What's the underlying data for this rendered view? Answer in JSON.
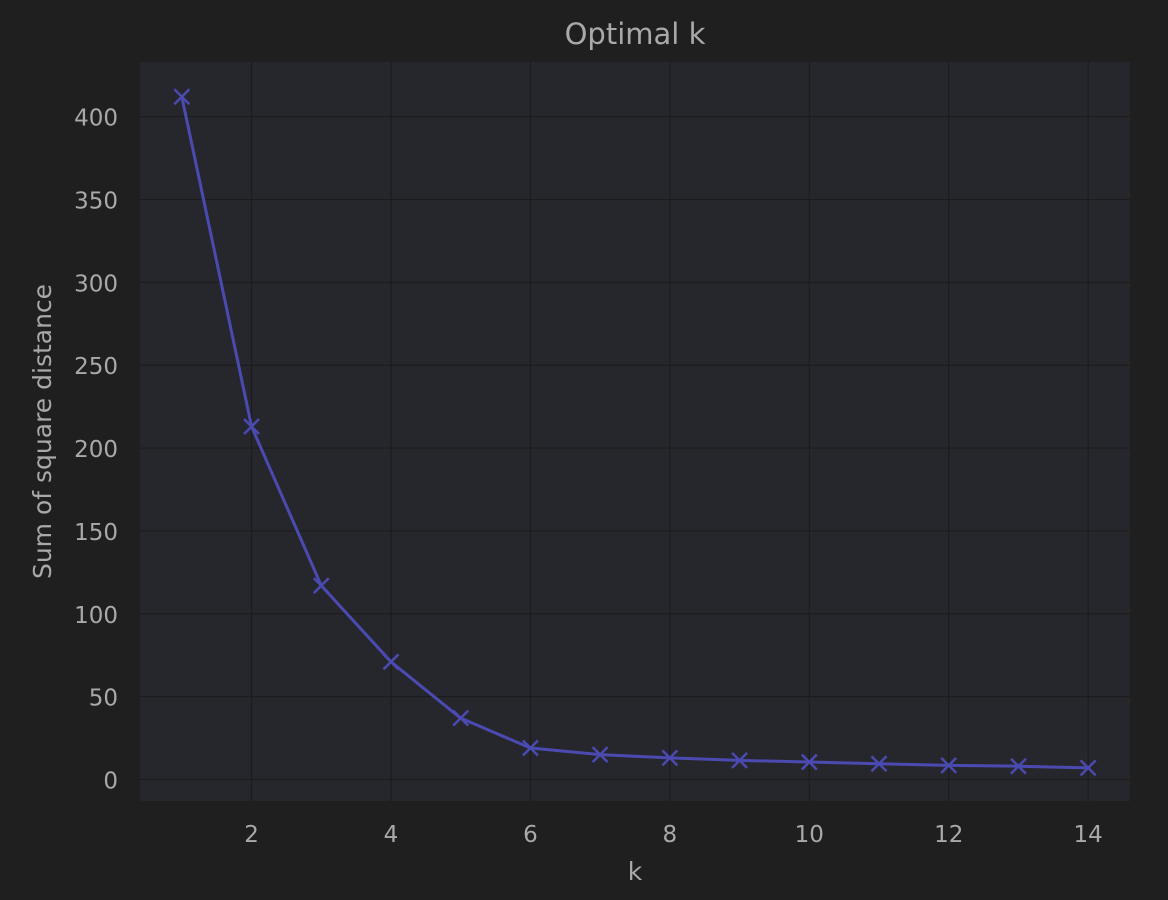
{
  "chart_data": {
    "type": "line",
    "title": "Optimal k",
    "xlabel": "k",
    "ylabel": "Sum of square distance",
    "x": [
      1,
      2,
      3,
      4,
      5,
      6,
      7,
      8,
      9,
      10,
      11,
      12,
      13,
      14
    ],
    "series": [
      {
        "values": [
          412,
          213,
          117,
          71,
          37,
          19,
          15,
          13,
          11.5,
          10.5,
          9.5,
          8.5,
          8,
          7
        ],
        "color": "#4a4ab0",
        "marker": "x"
      }
    ],
    "xticks": [
      2,
      4,
      6,
      8,
      10,
      12,
      14
    ],
    "yticks": [
      0,
      50,
      100,
      150,
      200,
      250,
      300,
      350,
      400
    ],
    "xlim": [
      0.4,
      14.6
    ],
    "ylim": [
      -13,
      433
    ],
    "grid": true,
    "colors": {
      "figure_background": "#1f1f1f",
      "plot_background": "#26272d",
      "grid": "#1c1c1e",
      "text": "#a9a9a9",
      "line": "#4a4ab0"
    }
  }
}
